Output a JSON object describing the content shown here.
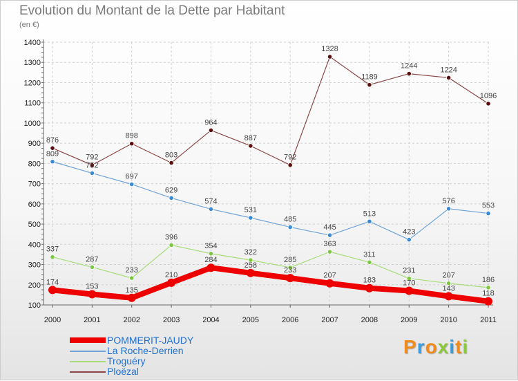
{
  "header": {
    "title": "Evolution du Montant de la Dette par Habitant",
    "subtitle": "(en €)"
  },
  "logo": {
    "text": "Proxiti",
    "colors": [
      "#f08c1e",
      "#3c9ad8",
      "#f08c1e",
      "#8cc83c",
      "#3c9ad8",
      "#f08c1e",
      "#8cc83c"
    ]
  },
  "colors": {
    "grid": "#d0d0d0",
    "axis": "#666666",
    "legend_text": "#1e6fd0"
  },
  "chart_data": {
    "type": "line",
    "title": "Evolution du Montant de la Dette par Habitant",
    "ylabel": "(en €)",
    "xlabel": "",
    "x": [
      "2000",
      "2001",
      "2002",
      "2003",
      "2004",
      "2005",
      "2006",
      "2007",
      "2008",
      "2009",
      "2010",
      "2011"
    ],
    "ylim": [
      100,
      1400
    ],
    "yticks": [
      100,
      200,
      300,
      400,
      500,
      600,
      700,
      800,
      900,
      1000,
      1100,
      1200,
      1300,
      1400
    ],
    "grid": true,
    "legend_position": "bottom-left",
    "series": [
      {
        "name": "POMMERIT-JAUDY",
        "color": "#ee0000",
        "marker": "#ee0000",
        "thick": true,
        "values": [
          174,
          153,
          135,
          210,
          284,
          258,
          233,
          207,
          183,
          170,
          143,
          118
        ],
        "labels": [
          "174",
          "153",
          "135",
          "210",
          "284",
          "258",
          "233",
          "207",
          "183",
          "170",
          "143",
          "118"
        ]
      },
      {
        "name": "La Roche-Derrien",
        "color": "#6fa3d6",
        "marker": "#3a8ad6",
        "thick": false,
        "values": [
          809,
          752,
          697,
          629,
          574,
          531,
          485,
          445,
          513,
          423,
          576,
          553
        ],
        "labels": [
          "809",
          "752",
          "697",
          "629",
          "574",
          "531",
          "485",
          "445",
          "513",
          "423",
          "576",
          "553"
        ]
      },
      {
        "name": "Troguéry",
        "color": "#a8dc78",
        "marker": "#7cc640",
        "thick": false,
        "values": [
          337,
          287,
          233,
          396,
          354,
          322,
          285,
          363,
          311,
          231,
          207,
          186
        ],
        "labels": [
          "337",
          "287",
          "233",
          "396",
          "354",
          "322",
          "285",
          "363",
          "311",
          "231",
          "207",
          "186"
        ]
      },
      {
        "name": "Ploëzal",
        "color": "#8a4646",
        "marker": "#5a0f0f",
        "thick": false,
        "values": [
          876,
          792,
          898,
          803,
          964,
          887,
          792,
          1328,
          1189,
          1244,
          1224,
          1096
        ],
        "labels": [
          "876",
          "792",
          "898",
          "803",
          "964",
          "887",
          "792",
          "1328",
          "1189",
          "1244",
          "1224",
          "1096"
        ]
      }
    ]
  }
}
